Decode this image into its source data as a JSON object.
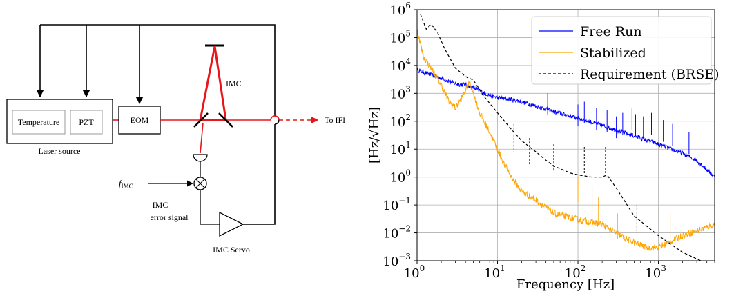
{
  "diagram": {
    "temperature": "Temperature",
    "pzt": "PZT",
    "laser_source": "Laser source",
    "eom": "EOM",
    "imc": "IMC",
    "to_ifi": "To IFI",
    "f_imc_main": "f",
    "f_imc_sub": "IMC",
    "error_signal_line1": "IMC",
    "error_signal_line2": "error signal",
    "servo": "IMC Servo",
    "colors": {
      "laser_beam": "#e8161b",
      "wire": "#000000"
    }
  },
  "chart_data": {
    "type": "line",
    "xscale": "log",
    "yscale": "log",
    "xlim": [
      1,
      5000
    ],
    "ylim": [
      0.001,
      1000000
    ],
    "xlabel": "Frequency [Hz]",
    "ylabel": "[Hz/√Hz]",
    "xticks": [
      {
        "value": 1,
        "base": "10",
        "exp": "0"
      },
      {
        "value": 10,
        "base": "10",
        "exp": "1"
      },
      {
        "value": 100,
        "base": "10",
        "exp": "2"
      },
      {
        "value": 1000,
        "base": "10",
        "exp": "3"
      }
    ],
    "yticks": [
      {
        "value": 1000000,
        "base": "10",
        "exp": "6"
      },
      {
        "value": 100000,
        "base": "10",
        "exp": "5"
      },
      {
        "value": 10000,
        "base": "10",
        "exp": "4"
      },
      {
        "value": 1000,
        "base": "10",
        "exp": "3"
      },
      {
        "value": 100,
        "base": "10",
        "exp": "2"
      },
      {
        "value": 10,
        "base": "10",
        "exp": "1"
      },
      {
        "value": 1,
        "base": "10",
        "exp": "0"
      },
      {
        "value": 0.1,
        "base": "10",
        "exp": "−1"
      },
      {
        "value": 0.01,
        "base": "10",
        "exp": "−2"
      },
      {
        "value": 0.001,
        "base": "10",
        "exp": "−3"
      }
    ],
    "grid": true,
    "legend_position": "top-right",
    "series": [
      {
        "name": "Free Run",
        "color": "#0000ff",
        "style": "solid",
        "x": [
          1,
          1.5,
          2,
          3,
          4,
          5,
          7,
          10,
          15,
          20,
          30,
          50,
          100,
          200,
          500,
          1000,
          2000,
          3000,
          5000
        ],
        "y": [
          7000,
          4500,
          3500,
          2200,
          2000,
          1600,
          1000,
          700,
          600,
          500,
          350,
          220,
          130,
          70,
          30,
          15,
          7,
          4,
          1
        ]
      },
      {
        "name": "Stabilized",
        "color": "#ffa500",
        "style": "solid",
        "x": [
          1,
          1.2,
          1.5,
          2,
          2.5,
          3,
          3.5,
          4.5,
          5,
          6,
          8,
          10,
          12,
          15,
          20,
          30,
          50,
          100,
          200,
          400,
          700,
          1000,
          2000,
          5000
        ],
        "y": [
          200000,
          20000,
          8000,
          2000,
          500,
          300,
          600,
          2500,
          1000,
          200,
          40,
          10,
          3,
          1,
          0.3,
          0.15,
          0.05,
          0.03,
          0.02,
          0.006,
          0.003,
          0.003,
          0.008,
          0.02
        ]
      },
      {
        "name": "Requirement (BRSE)",
        "color": "#000000",
        "style": "dashed",
        "x": [
          1.1,
          1.3,
          1.5,
          1.8,
          2.2,
          3,
          4,
          5,
          7,
          10,
          15,
          20,
          25,
          30,
          40,
          50,
          60,
          80,
          100,
          150,
          200,
          230,
          300,
          500,
          1000,
          2000,
          4000
        ],
        "y": [
          700000,
          200000,
          300000,
          150000,
          40000,
          8000,
          4000,
          3000,
          700,
          200,
          50,
          20,
          12,
          8,
          4,
          2.5,
          2,
          1.4,
          1.2,
          1.0,
          1.0,
          1.2,
          0.4,
          0.04,
          0.008,
          0.002,
          0.0008
        ]
      }
    ]
  }
}
